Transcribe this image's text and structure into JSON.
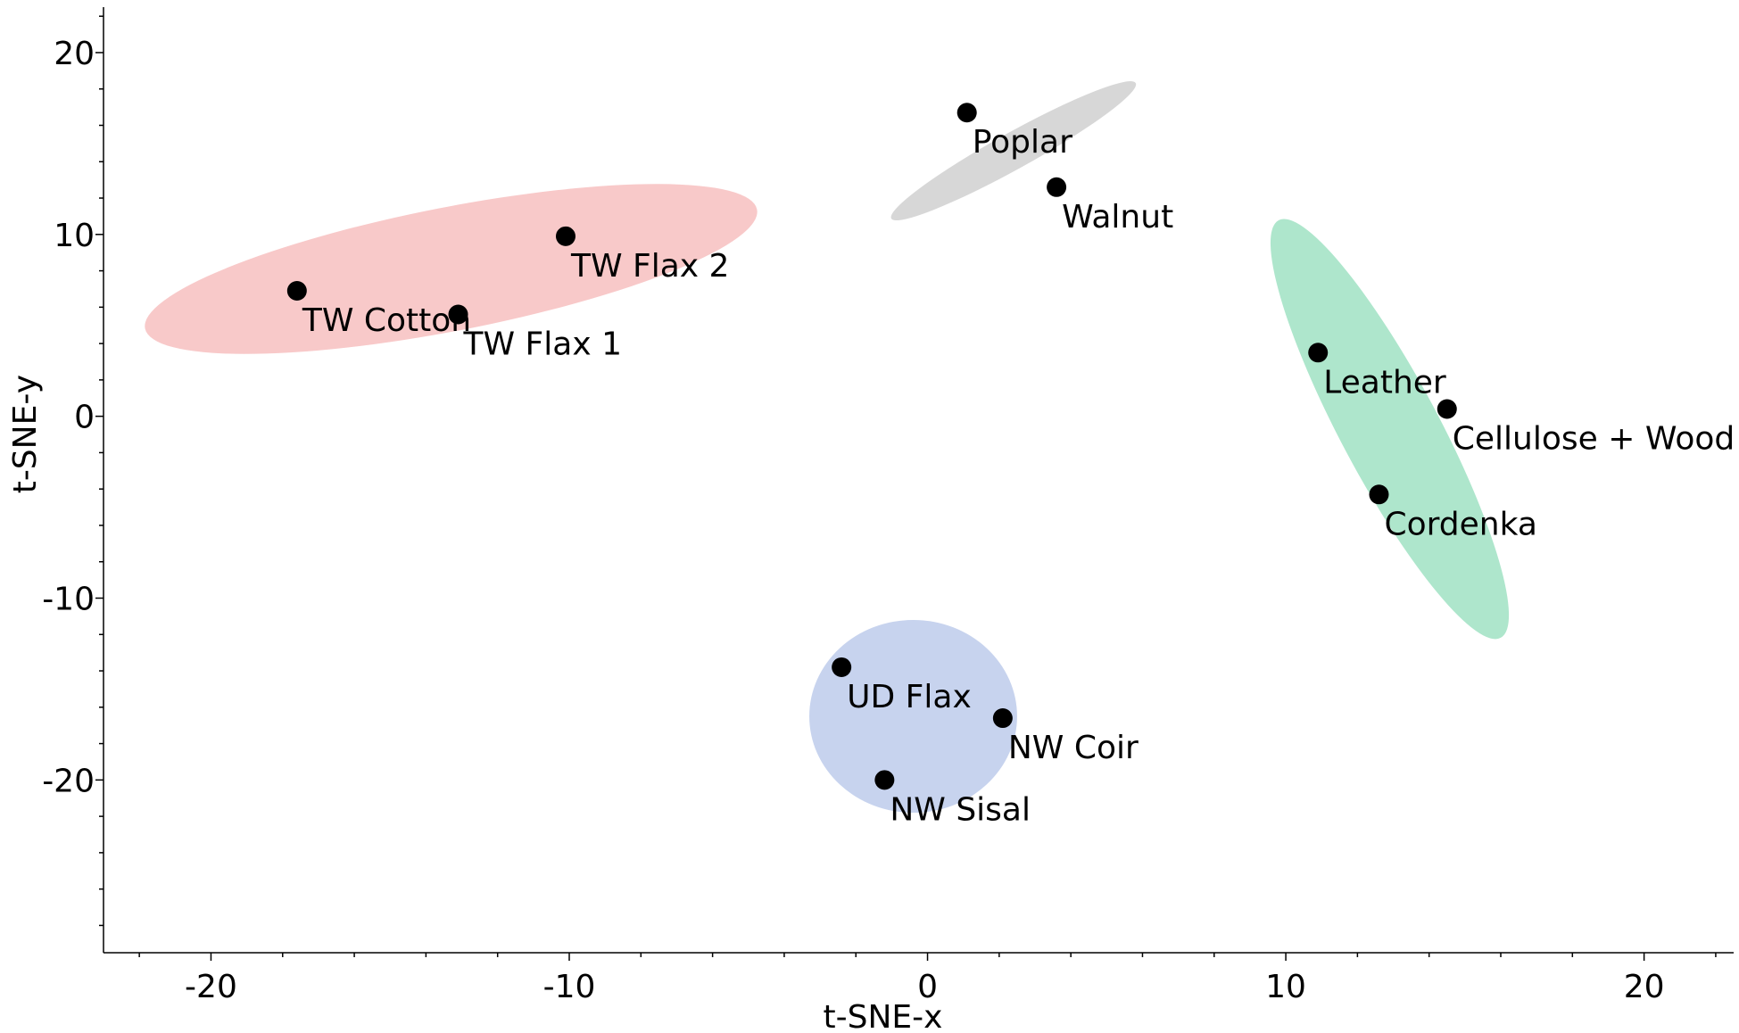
{
  "chart_data": {
    "type": "scatter",
    "xlabel": "t-SNE-x",
    "ylabel": "t-SNE-y",
    "xlim": [
      -23,
      22.5
    ],
    "ylim": [
      -29.5,
      22.5
    ],
    "xticks": [
      -20,
      -10,
      0,
      10,
      20
    ],
    "yticks": [
      -20,
      -10,
      0,
      10,
      20
    ],
    "xtick_labels": [
      "-20",
      "-10",
      "0",
      "10",
      "20"
    ],
    "ytick_labels": [
      "-20",
      "-10",
      "0",
      "10",
      "20"
    ],
    "grid": false,
    "points": [
      {
        "label": "TW Cotton",
        "x": -17.6,
        "y": 6.9
      },
      {
        "label": "TW Flax 2",
        "x": -10.1,
        "y": 9.9
      },
      {
        "label": "TW Flax 1",
        "x": -13.1,
        "y": 5.6
      },
      {
        "label": "Poplar",
        "x": 1.1,
        "y": 16.7
      },
      {
        "label": "Walnut",
        "x": 3.6,
        "y": 12.6
      },
      {
        "label": "Leather",
        "x": 10.9,
        "y": 3.5
      },
      {
        "label": "Cellulose + Wood",
        "x": 14.5,
        "y": 0.4
      },
      {
        "label": "Cordenka",
        "x": 12.6,
        "y": -4.3
      },
      {
        "label": "UD Flax",
        "x": -2.4,
        "y": -13.8
      },
      {
        "label": "NW Coir",
        "x": 2.1,
        "y": -16.6
      },
      {
        "label": "NW Sisal",
        "x": -1.2,
        "y": -20.0
      }
    ],
    "clusters": [
      {
        "members": [
          "TW Cotton",
          "TW Flax 1",
          "TW Flax 2"
        ],
        "color": "#f8c9c9",
        "cx": -13.3,
        "cy": 8.1,
        "rx": 8.7,
        "ry": 3.4,
        "angle_deg": 11
      },
      {
        "members": [
          "Poplar",
          "Walnut"
        ],
        "color": "#d7d7d7",
        "cx": 2.4,
        "cy": 14.6,
        "rx": 3.9,
        "ry": 1.0,
        "angle_deg": 29
      },
      {
        "members": [
          "Leather",
          "Cellulose + Wood",
          "Cordenka"
        ],
        "color": "#aee6cc",
        "cx": 12.9,
        "cy": -0.7,
        "rx": 6.6,
        "ry": 2.7,
        "angle_deg": -62
      },
      {
        "members": [
          "UD Flax",
          "NW Coir",
          "NW Sisal"
        ],
        "color": "#c7d3ee",
        "cx": -0.4,
        "cy": -16.5,
        "rx": 2.9,
        "ry": 5.3,
        "angle_deg": 0
      }
    ],
    "point_color": "#000000"
  }
}
